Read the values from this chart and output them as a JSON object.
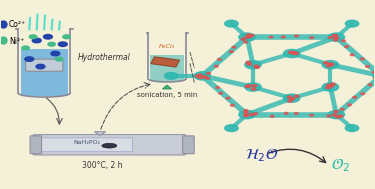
{
  "bg_color": "#f5f0d8",
  "beaker1_liquid": "#6ab0e0",
  "beaker2_liquid": "#80c8c0",
  "nife_color": "#30b8b0",
  "conip_color": "#e05050",
  "co_color": "#2244aa",
  "ni_color": "#44bb88",
  "h2o_color": "#2233aa",
  "o2_color": "#22bbaa",
  "labels": {
    "co": "Co²⁺",
    "ni": "Ni²⁺",
    "hydrothermal": "Hydrothermal",
    "sonication": "sonication, 5 min",
    "fecl3": "FeCl₃",
    "tube_label": "NaH₂PO₂",
    "temp": "300°C, 2 h",
    "h2o": "$\\mathcal{H}_2\\mathcal{O}$",
    "o2": "$\\mathcal{O}_2$"
  }
}
